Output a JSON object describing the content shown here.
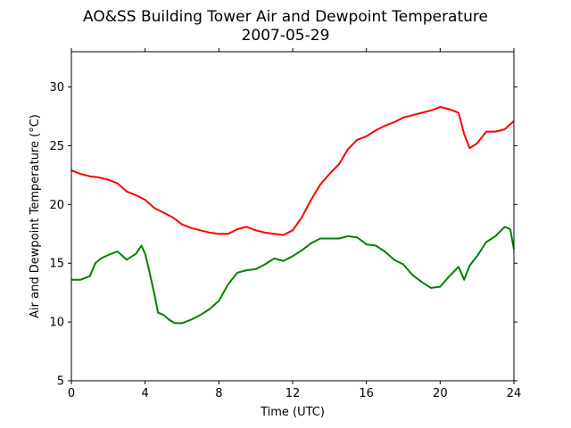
{
  "chart_data": {
    "type": "line",
    "title": "AO&SS Building Tower Air and Dewpoint Temperature",
    "subtitle": "2007-05-29",
    "xlabel": "Time (UTC)",
    "ylabel": "Air and Dewpoint Temperature (°C)",
    "xlim": [
      0,
      24
    ],
    "ylim": [
      5,
      33
    ],
    "xticks": [
      0,
      4,
      8,
      12,
      16,
      20,
      24
    ],
    "yticks": [
      5,
      10,
      15,
      20,
      25,
      30
    ],
    "grid": false,
    "series": [
      {
        "color": "#ff0000",
        "x": [
          0,
          0.5,
          1,
          1.5,
          2,
          2.5,
          3,
          3.5,
          4,
          4.5,
          5,
          5.5,
          6,
          6.5,
          7,
          7.5,
          8,
          8.5,
          9,
          9.5,
          10,
          10.5,
          11,
          11.5,
          12,
          12.5,
          13,
          13.5,
          14,
          14.5,
          15,
          15.5,
          16,
          16.5,
          17,
          17.5,
          18,
          18.5,
          19,
          19.5,
          20,
          20.5,
          21,
          21.3,
          21.6,
          22,
          22.5,
          23,
          23.5,
          24
        ],
        "y": [
          22.9,
          22.6,
          22.4,
          22.3,
          22.1,
          21.8,
          21.1,
          20.8,
          20.4,
          19.7,
          19.3,
          18.9,
          18.3,
          18.0,
          17.8,
          17.6,
          17.5,
          17.5,
          17.9,
          18.1,
          17.8,
          17.6,
          17.5,
          17.4,
          17.8,
          18.9,
          20.4,
          21.7,
          22.6,
          23.4,
          24.7,
          25.5,
          25.8,
          26.3,
          26.7,
          27.0,
          27.4,
          27.6,
          27.8,
          28.0,
          28.3,
          28.1,
          27.8,
          26.0,
          24.8,
          25.2,
          26.2,
          26.2,
          26.4,
          27.1
        ]
      },
      {
        "color": "#008000",
        "x": [
          0,
          0.5,
          1,
          1.3,
          1.6,
          2,
          2.5,
          3,
          3.5,
          3.8,
          4,
          4.2,
          4.5,
          4.7,
          5,
          5.3,
          5.6,
          6,
          6.5,
          7,
          7.5,
          8,
          8.5,
          9,
          9.5,
          10,
          10.5,
          11,
          11.5,
          12,
          12.5,
          13,
          13.5,
          14,
          14.5,
          15,
          15.5,
          16,
          16.5,
          17,
          17.5,
          18,
          18.5,
          19,
          19.5,
          20,
          20.5,
          21,
          21.3,
          21.6,
          22,
          22.5,
          23,
          23.5,
          23.8,
          24
        ],
        "y": [
          13.6,
          13.6,
          13.9,
          15.0,
          15.4,
          15.7,
          16.0,
          15.3,
          15.8,
          16.5,
          15.8,
          14.5,
          12.4,
          10.8,
          10.6,
          10.2,
          9.9,
          9.9,
          10.2,
          10.6,
          11.1,
          11.8,
          13.2,
          14.2,
          14.4,
          14.5,
          14.9,
          15.4,
          15.2,
          15.6,
          16.1,
          16.7,
          17.1,
          17.1,
          17.1,
          17.3,
          17.2,
          16.6,
          16.5,
          16.0,
          15.3,
          14.9,
          14.0,
          13.4,
          12.9,
          13.0,
          13.9,
          14.7,
          13.6,
          14.8,
          15.6,
          16.8,
          17.3,
          18.1,
          17.9,
          16.2
        ]
      }
    ]
  }
}
